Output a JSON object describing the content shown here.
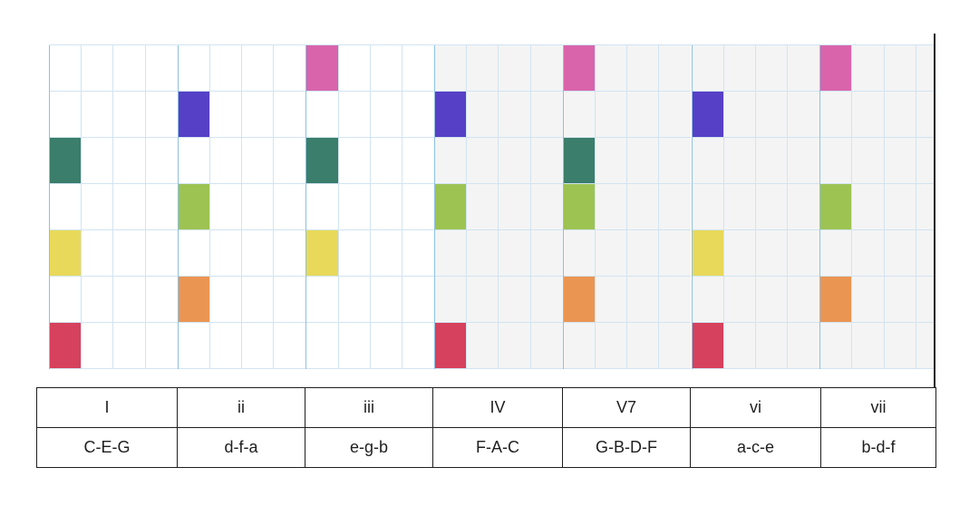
{
  "note_colors": {
    "1": "#d6415d",
    "2": "#eb9553",
    "3": "#e8d95a",
    "4": "#9dc353",
    "5": "#3a7e6b",
    "6": "#5640c6",
    "7": "#d964ac"
  },
  "chords": [
    {
      "numeral": "I",
      "notes": "C-E-G",
      "degrees": [
        1,
        3,
        5
      ]
    },
    {
      "numeral": "ii",
      "notes": "d-f-a",
      "degrees": [
        2,
        4,
        6
      ]
    },
    {
      "numeral": "iii",
      "notes": "e-g-b",
      "degrees": [
        3,
        5,
        7
      ]
    },
    {
      "numeral": "IV",
      "notes": "F-A-C",
      "degrees": [
        1,
        4,
        6
      ]
    },
    {
      "numeral": "V7",
      "notes": "G-B-D-F",
      "degrees": [
        2,
        4,
        5,
        7
      ]
    },
    {
      "numeral": "vi",
      "notes": "a-c-e",
      "degrees": [
        1,
        3,
        6
      ]
    },
    {
      "numeral": "vii",
      "notes": "b-d-f",
      "degrees": [
        2,
        4,
        7
      ]
    }
  ]
}
